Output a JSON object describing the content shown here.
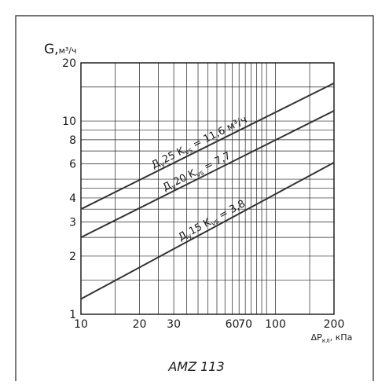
{
  "chart_data": {
    "type": "line",
    "x_scale": "log",
    "y_scale": "log",
    "xlim": [
      10,
      200
    ],
    "ylim": [
      1,
      20
    ],
    "grid": true,
    "x_ticks": [
      "10",
      "20",
      "30",
      "60",
      "70",
      "100",
      "200"
    ],
    "x_tick_values": [
      10,
      20,
      30,
      60,
      70,
      100,
      200
    ],
    "x_grid": [
      10,
      15,
      20,
      25,
      30,
      35,
      40,
      45,
      50,
      55,
      60,
      65,
      70,
      75,
      80,
      85,
      90,
      100,
      150,
      200
    ],
    "y_ticks": [
      "1",
      "2",
      "3",
      "4",
      "6",
      "8",
      "10",
      "20"
    ],
    "y_tick_values": [
      1,
      2,
      3,
      4,
      6,
      8,
      10,
      20
    ],
    "y_grid": [
      1,
      1.5,
      2,
      2.5,
      3,
      3.5,
      4,
      4.5,
      5,
      6,
      7,
      8,
      9,
      10,
      15,
      20
    ],
    "ylabel_main": "G,",
    "ylabel_unit": "м³/ч",
    "xlabel_prefix": "ΔP",
    "xlabel_sub": "кл",
    "xlabel_suffix": ", кПа",
    "caption": "AMZ 113",
    "series": [
      {
        "label_pre": "Д",
        "label_sub": "у",
        "label_mid": "25 K",
        "label_sub2": "vs",
        "label_post": " = 11,6 м³/ч",
        "x": [
          10,
          200
        ],
        "y": [
          3.5,
          15.7
        ]
      },
      {
        "label_pre": "Д",
        "label_sub": "у",
        "label_mid": "20 K",
        "label_sub2": "vs",
        "label_post": " = 7,7",
        "x": [
          10,
          200
        ],
        "y": [
          2.5,
          11.3
        ]
      },
      {
        "label_pre": "Д",
        "label_sub": "у",
        "label_mid": "15 K",
        "label_sub2": "vs",
        "label_post": " = 3,8",
        "x": [
          10,
          200
        ],
        "y": [
          1.2,
          6.1
        ]
      }
    ]
  }
}
